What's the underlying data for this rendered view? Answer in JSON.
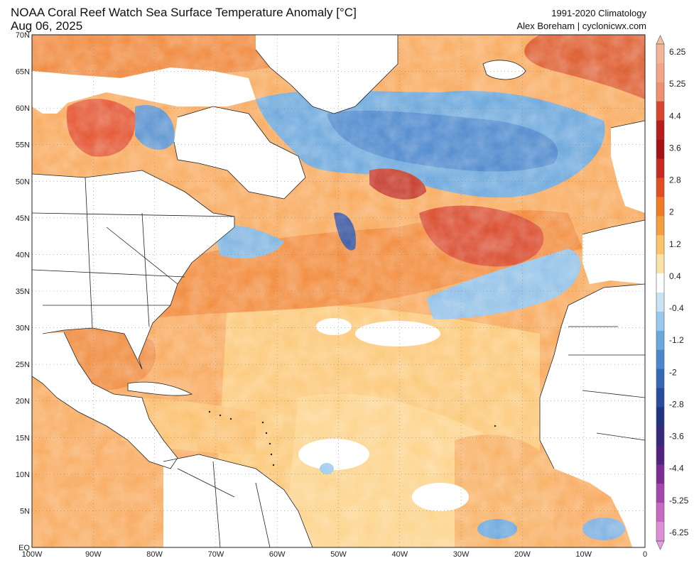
{
  "header": {
    "title": "NOAA Coral Reef Watch Sea Surface Temperature Anomaly [°C]",
    "date": "Aug 06, 2025",
    "climatology": "1991-2020 Climatology",
    "credit": "Alex Boreham | cyclonicwx.com"
  },
  "map": {
    "lat_ticks": [
      "70N",
      "65N",
      "60N",
      "55N",
      "50N",
      "45N",
      "40N",
      "35N",
      "30N",
      "25N",
      "20N",
      "15N",
      "10N",
      "5N",
      "EQ"
    ],
    "lon_ticks": [
      "100W",
      "90W",
      "80W",
      "70W",
      "60W",
      "50W",
      "40W",
      "30W",
      "20W",
      "10W",
      "0"
    ],
    "lat_range": [
      0,
      70
    ],
    "lon_range": [
      -100,
      0
    ]
  },
  "colorbar": {
    "labels": [
      "6.25",
      "5.25",
      "4.4",
      "3.6",
      "2.8",
      "2",
      "1.2",
      "0.4",
      "-0.4",
      "-1.2",
      "-2",
      "-2.8",
      "-3.6",
      "-4.4",
      "-5.25",
      "-6.25"
    ],
    "colors": [
      "#f4b69a",
      "#f3a585",
      "#f09070",
      "#d8442c",
      "#b81d1e",
      "#a51114",
      "#c82a20",
      "#e34d21",
      "#f17b22",
      "#f59e3b",
      "#fbc46a",
      "#fde3a6",
      "#ffffff",
      "#c8e4f4",
      "#98c8ec",
      "#6aa9de",
      "#4a88cd",
      "#3668b8",
      "#2a4c9e",
      "#1f3380",
      "#332a7a",
      "#52237e",
      "#7a2c93",
      "#a546ad",
      "#c769c2",
      "#dd8fd6"
    ]
  }
}
